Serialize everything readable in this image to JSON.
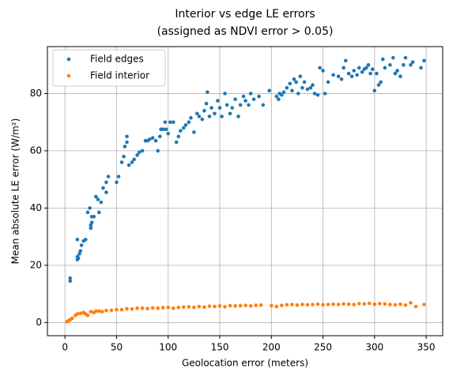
{
  "chart_data": {
    "type": "scatter",
    "title": "Interior vs edge LE errors",
    "subtitle": "(assigned as NDVI error > 0.05)",
    "x_label": "Geolocation error (meters)",
    "y_label": "Mean absolute LE error (W/m²)",
    "xlim": [
      -17,
      366
    ],
    "ylim": [
      -4.6,
      96.4
    ],
    "xticks": [
      0,
      50,
      100,
      150,
      200,
      250,
      300,
      350
    ],
    "yticks": [
      0,
      20,
      40,
      60,
      80
    ],
    "grid": true,
    "legend": "upper left",
    "series": [
      {
        "name": "Field edges",
        "color": "#1f77b4",
        "x": [
          5,
          5,
          12,
          12,
          13,
          12,
          14,
          15,
          16,
          18,
          20,
          22,
          24,
          25,
          25,
          26,
          26,
          28,
          30,
          32,
          33,
          35,
          37,
          40,
          40,
          42,
          50,
          52,
          55,
          57,
          58,
          60,
          60,
          62,
          65,
          67,
          70,
          72,
          75,
          78,
          80,
          82,
          85,
          88,
          90,
          92,
          93,
          95,
          97,
          98,
          100,
          102,
          105,
          108,
          110,
          112,
          115,
          117,
          120,
          122,
          125,
          128,
          130,
          133,
          135,
          137,
          138,
          140,
          142,
          145,
          148,
          150,
          152,
          155,
          157,
          160,
          162,
          165,
          168,
          170,
          173,
          175,
          178,
          180,
          183,
          188,
          192,
          198,
          205,
          207,
          208,
          210,
          212,
          215,
          218,
          220,
          222,
          224,
          226,
          228,
          230,
          232,
          235,
          238,
          240,
          242,
          245,
          247,
          250,
          252,
          255,
          260,
          265,
          268,
          270,
          272,
          275,
          278,
          280,
          283,
          285,
          288,
          290,
          292,
          294,
          296,
          298,
          300,
          302,
          304,
          306,
          308,
          310,
          315,
          318,
          320,
          322,
          325,
          328,
          330,
          335,
          337,
          345,
          348
        ],
        "values": [
          14.5,
          15.5,
          22,
          23,
          22.5,
          29,
          24,
          25,
          27,
          28.5,
          29,
          38.5,
          40,
          33,
          34,
          35,
          37,
          37,
          44,
          43,
          38.5,
          42,
          47,
          45.5,
          49,
          51,
          49,
          51,
          56,
          58,
          61.5,
          65,
          63,
          55,
          56,
          57,
          58.5,
          59.5,
          60,
          63.5,
          63.5,
          64,
          64.5,
          63.5,
          60,
          65,
          67.5,
          67.5,
          70,
          67.5,
          66,
          70,
          70,
          63,
          65,
          67,
          68,
          69,
          70,
          71.5,
          66.5,
          73,
          72,
          71,
          74,
          76.5,
          80.5,
          72,
          75,
          73,
          77.5,
          75,
          72,
          80,
          76,
          73,
          75,
          78,
          72,
          76,
          79,
          77.5,
          76,
          80,
          78,
          79,
          76,
          81,
          79,
          78,
          80,
          79.5,
          80.5,
          82,
          83.5,
          81,
          85,
          84,
          80,
          86,
          82,
          84,
          81.5,
          82,
          83,
          80,
          79.5,
          89,
          88,
          80,
          84,
          86.5,
          86,
          85,
          89,
          91.5,
          87,
          86,
          88,
          86.5,
          89,
          87.5,
          88.5,
          89,
          90,
          87,
          88.5,
          81,
          87,
          83,
          84,
          92,
          89,
          90,
          92.5,
          87,
          88,
          86,
          90,
          92.5,
          90,
          91,
          89,
          91.5
        ]
      },
      {
        "name": "Field interior",
        "color": "#ff7f0e",
        "x": [
          2,
          3,
          4,
          5,
          7,
          10,
          12,
          15,
          18,
          20,
          22,
          25,
          28,
          30,
          33,
          36,
          40,
          45,
          50,
          55,
          60,
          65,
          70,
          75,
          80,
          85,
          90,
          95,
          100,
          105,
          110,
          115,
          120,
          125,
          130,
          135,
          140,
          145,
          150,
          155,
          160,
          165,
          170,
          175,
          180,
          185,
          190,
          200,
          205,
          210,
          215,
          220,
          225,
          230,
          235,
          240,
          245,
          250,
          255,
          260,
          265,
          270,
          275,
          280,
          285,
          290,
          295,
          300,
          305,
          310,
          315,
          320,
          325,
          330,
          335,
          340,
          348
        ],
        "values": [
          0.3,
          0.5,
          0.8,
          1.0,
          1.5,
          2.5,
          3.0,
          3.2,
          3.5,
          3.0,
          2.5,
          3.8,
          3.5,
          4.0,
          4.0,
          3.8,
          4.2,
          4.3,
          4.5,
          4.5,
          4.8,
          4.7,
          5.0,
          5.0,
          4.9,
          5.1,
          5.0,
          5.2,
          5.3,
          5.0,
          5.3,
          5.4,
          5.5,
          5.3,
          5.6,
          5.4,
          5.7,
          5.6,
          5.8,
          5.5,
          5.9,
          5.8,
          5.9,
          6.0,
          5.8,
          6.0,
          6.1,
          5.9,
          5.6,
          6.0,
          6.2,
          6.3,
          6.1,
          6.3,
          6.2,
          6.3,
          6.4,
          6.2,
          6.3,
          6.4,
          6.3,
          6.5,
          6.4,
          6.3,
          6.6,
          6.5,
          6.7,
          6.4,
          6.6,
          6.5,
          6.3,
          6.2,
          6.4,
          6.1,
          6.9,
          5.6,
          6.3
        ]
      }
    ]
  }
}
